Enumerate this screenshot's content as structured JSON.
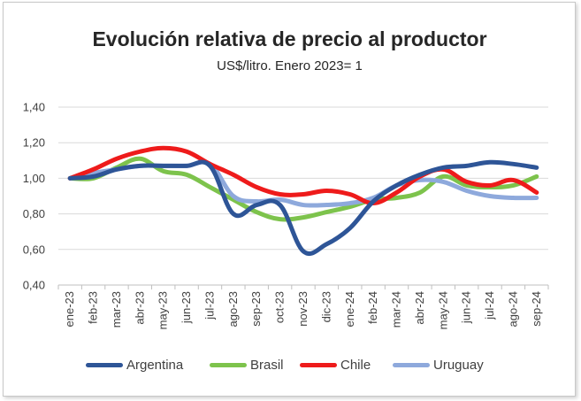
{
  "chart_data": {
    "type": "line",
    "title": "Evolución relativa de precio al productor",
    "subtitle": "US$/litro. Enero 2023= 1",
    "categories": [
      "ene-23",
      "feb-23",
      "mar-23",
      "abr-23",
      "may-23",
      "jun-23",
      "jul-23",
      "ago-23",
      "sep-23",
      "oct-23",
      "nov-23",
      "dic-23",
      "ene-24",
      "feb-24",
      "mar-24",
      "abr-24",
      "may-24",
      "jun-24",
      "jul-24",
      "ago-24",
      "sep-24"
    ],
    "y_ticks": [
      "0,40",
      "0,60",
      "0,80",
      "1,00",
      "1,20",
      "1,40"
    ],
    "ylim": [
      0.4,
      1.4
    ],
    "grid": "horizontal",
    "legend_position": "bottom",
    "series": [
      {
        "name": "Argentina",
        "color": "#2E5597",
        "values": [
          1.0,
          1.01,
          1.05,
          1.07,
          1.07,
          1.07,
          1.07,
          0.8,
          0.85,
          0.85,
          0.59,
          0.63,
          0.72,
          0.87,
          0.96,
          1.02,
          1.06,
          1.07,
          1.09,
          1.08,
          1.06
        ]
      },
      {
        "name": "Brasil",
        "color": "#7DC34C",
        "values": [
          1.0,
          1.0,
          1.06,
          1.11,
          1.04,
          1.02,
          0.95,
          0.88,
          0.81,
          0.77,
          0.78,
          0.81,
          0.84,
          0.88,
          0.89,
          0.92,
          1.01,
          0.96,
          0.95,
          0.96,
          1.01
        ]
      },
      {
        "name": "Chile",
        "color": "#EE1B1B",
        "values": [
          1.0,
          1.05,
          1.11,
          1.15,
          1.17,
          1.15,
          1.08,
          1.02,
          0.95,
          0.91,
          0.91,
          0.93,
          0.91,
          0.86,
          0.92,
          1.01,
          1.05,
          0.98,
          0.96,
          0.99,
          0.92
        ]
      },
      {
        "name": "Uruguay",
        "color": "#8EA9DC",
        "values": [
          1.0,
          1.03,
          1.05,
          1.07,
          1.07,
          1.07,
          1.08,
          0.9,
          0.87,
          0.88,
          0.85,
          0.85,
          0.86,
          0.89,
          0.96,
          0.99,
          0.98,
          0.93,
          0.9,
          0.89,
          0.89
        ]
      }
    ]
  }
}
